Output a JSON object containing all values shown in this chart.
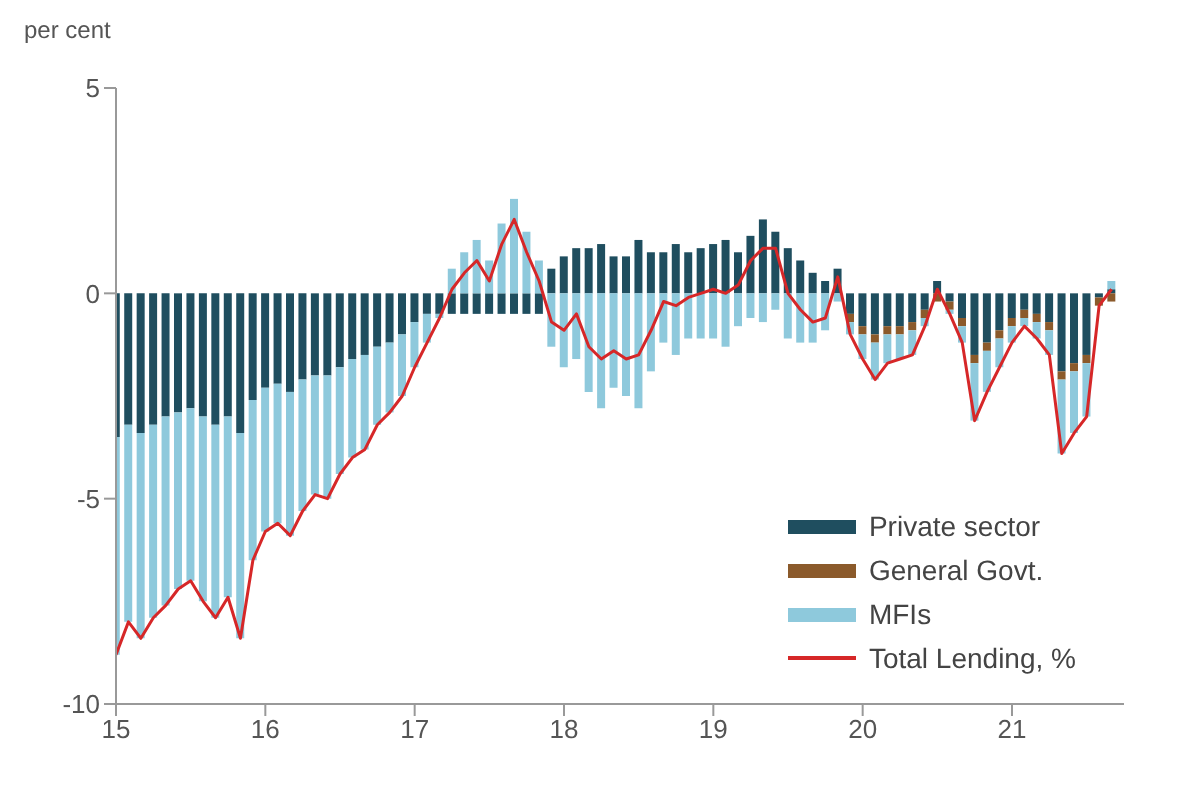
{
  "chart_data": {
    "type": "bar",
    "stacked": true,
    "ylabel": "per cent",
    "legend": "bottom right",
    "x": [
      "2015-01",
      "2015-02",
      "2015-03",
      "2015-04",
      "2015-05",
      "2015-06",
      "2015-07",
      "2015-08",
      "2015-09",
      "2015-10",
      "2015-11",
      "2015-12",
      "2016-01",
      "2016-02",
      "2016-03",
      "2016-04",
      "2016-05",
      "2016-06",
      "2016-07",
      "2016-08",
      "2016-09",
      "2016-10",
      "2016-11",
      "2016-12",
      "2017-01",
      "2017-02",
      "2017-03",
      "2017-04",
      "2017-05",
      "2017-06",
      "2017-07",
      "2017-08",
      "2017-09",
      "2017-10",
      "2017-11",
      "2017-12",
      "2018-01",
      "2018-02",
      "2018-03",
      "2018-04",
      "2018-05",
      "2018-06",
      "2018-07",
      "2018-08",
      "2018-09",
      "2018-10",
      "2018-11",
      "2018-12",
      "2019-01",
      "2019-02",
      "2019-03",
      "2019-04",
      "2019-05",
      "2019-06",
      "2019-07",
      "2019-08",
      "2019-09",
      "2019-10",
      "2019-11",
      "2019-12",
      "2020-01",
      "2020-02",
      "2020-03",
      "2020-04",
      "2020-05",
      "2020-06",
      "2020-07",
      "2020-08",
      "2020-09",
      "2020-10",
      "2020-11",
      "2020-12",
      "2021-01",
      "2021-02",
      "2021-03",
      "2021-04",
      "2021-05",
      "2021-06",
      "2021-07",
      "2021-08",
      "2021-09"
    ],
    "xlim": [
      "2015-01",
      "2021-10"
    ],
    "xticks": [
      {
        "value": "2015-01",
        "label": "15"
      },
      {
        "value": "2016-01",
        "label": "16"
      },
      {
        "value": "2017-01",
        "label": "17"
      },
      {
        "value": "2018-01",
        "label": "18"
      },
      {
        "value": "2019-01",
        "label": "19"
      },
      {
        "value": "2020-01",
        "label": "20"
      },
      {
        "value": "2021-01",
        "label": "21"
      }
    ],
    "ylim": [
      -10,
      5
    ],
    "yticks": [
      -10,
      -5,
      0,
      5
    ],
    "series": [
      {
        "name": "Private sector",
        "color": "#1f4e5f",
        "values": [
          -3.5,
          -3.2,
          -3.4,
          -3.2,
          -3.0,
          -2.9,
          -2.8,
          -3.0,
          -3.2,
          -3.0,
          -3.4,
          -2.6,
          -2.3,
          -2.2,
          -2.4,
          -2.1,
          -2.0,
          -2.0,
          -1.8,
          -1.6,
          -1.5,
          -1.3,
          -1.2,
          -1.0,
          -0.7,
          -0.5,
          -0.5,
          -0.5,
          -0.5,
          -0.5,
          -0.5,
          -0.5,
          -0.5,
          -0.5,
          -0.5,
          0.6,
          0.9,
          1.1,
          1.1,
          1.2,
          0.9,
          0.9,
          1.3,
          1.0,
          1.0,
          1.2,
          1.0,
          1.1,
          1.2,
          1.3,
          1.0,
          1.4,
          1.8,
          1.5,
          1.1,
          0.8,
          0.5,
          0.3,
          0.6,
          -0.5,
          -0.8,
          -1.0,
          -0.8,
          -0.8,
          -0.7,
          -0.4,
          0.3,
          -0.2,
          -0.6,
          -1.5,
          -1.2,
          -0.9,
          -0.6,
          -0.4,
          -0.5,
          -0.7,
          -1.9,
          -1.7,
          -1.5,
          -0.1,
          0.1
        ]
      },
      {
        "name": "General Govt.",
        "color": "#8b5a2b",
        "values": [
          0,
          0,
          0,
          0,
          0,
          0,
          0,
          0,
          0,
          0,
          0,
          0,
          0,
          0,
          0,
          0,
          0,
          0,
          0,
          0,
          0,
          0,
          0,
          0,
          0,
          0,
          0,
          0,
          0,
          0,
          0,
          0,
          0,
          0,
          0,
          0,
          0,
          0,
          0,
          0,
          0,
          0,
          0,
          0,
          0,
          0,
          0,
          0,
          0,
          0,
          0,
          0,
          0,
          0,
          0,
          0,
          0,
          0,
          0,
          -0.2,
          -0.2,
          -0.2,
          -0.2,
          -0.2,
          -0.2,
          -0.2,
          -0.2,
          -0.2,
          -0.2,
          -0.2,
          -0.2,
          -0.2,
          -0.2,
          -0.2,
          -0.2,
          -0.2,
          -0.2,
          -0.2,
          -0.2,
          -0.2,
          -0.2
        ]
      },
      {
        "name": "MFIs",
        "color": "#8ec9dc",
        "values": [
          -5.3,
          -4.8,
          -5.0,
          -4.7,
          -4.6,
          -4.3,
          -4.2,
          -4.5,
          -4.7,
          -4.4,
          -5.0,
          -3.9,
          -3.5,
          -3.4,
          -3.5,
          -3.2,
          -2.9,
          -3.0,
          -2.6,
          -2.4,
          -2.3,
          -1.9,
          -1.7,
          -1.5,
          -1.1,
          -0.7,
          -0.1,
          0.6,
          1.0,
          1.3,
          0.8,
          1.7,
          2.3,
          1.5,
          0.8,
          -1.3,
          -1.8,
          -1.6,
          -2.4,
          -2.8,
          -2.3,
          -2.5,
          -2.8,
          -1.9,
          -1.2,
          -1.5,
          -1.1,
          -1.1,
          -1.1,
          -1.3,
          -0.8,
          -0.6,
          -0.7,
          -0.4,
          -1.1,
          -1.2,
          -1.2,
          -0.9,
          -0.2,
          -0.3,
          -0.6,
          -0.9,
          -0.7,
          -0.6,
          -0.6,
          -0.2,
          0.0,
          -0.1,
          -0.4,
          -1.4,
          -1.0,
          -0.7,
          -0.4,
          -0.2,
          -0.4,
          -0.6,
          -1.8,
          -1.5,
          -1.3,
          0.0,
          0.2
        ]
      },
      {
        "name": "Total Lending, %",
        "type": "line",
        "color": "#d62728",
        "values": [
          -8.8,
          -8.0,
          -8.4,
          -7.9,
          -7.6,
          -7.2,
          -7.0,
          -7.5,
          -7.9,
          -7.4,
          -8.4,
          -6.5,
          -5.8,
          -5.6,
          -5.9,
          -5.3,
          -4.9,
          -5.0,
          -4.4,
          -4.0,
          -3.8,
          -3.2,
          -2.9,
          -2.5,
          -1.8,
          -1.2,
          -0.6,
          0.1,
          0.5,
          0.8,
          0.3,
          1.2,
          1.8,
          1.0,
          0.3,
          -0.7,
          -0.9,
          -0.5,
          -1.3,
          -1.6,
          -1.4,
          -1.6,
          -1.5,
          -0.9,
          -0.2,
          -0.3,
          -0.1,
          0.0,
          0.1,
          0.0,
          0.2,
          0.8,
          1.1,
          1.1,
          0.0,
          -0.4,
          -0.7,
          -0.6,
          0.4,
          -1.0,
          -1.6,
          -2.1,
          -1.7,
          -1.6,
          -1.5,
          -0.8,
          0.1,
          -0.5,
          -1.2,
          -3.1,
          -2.4,
          -1.8,
          -1.2,
          -0.8,
          -1.1,
          -1.5,
          -3.9,
          -3.4,
          -3.0,
          -0.3,
          0.1
        ]
      }
    ]
  }
}
